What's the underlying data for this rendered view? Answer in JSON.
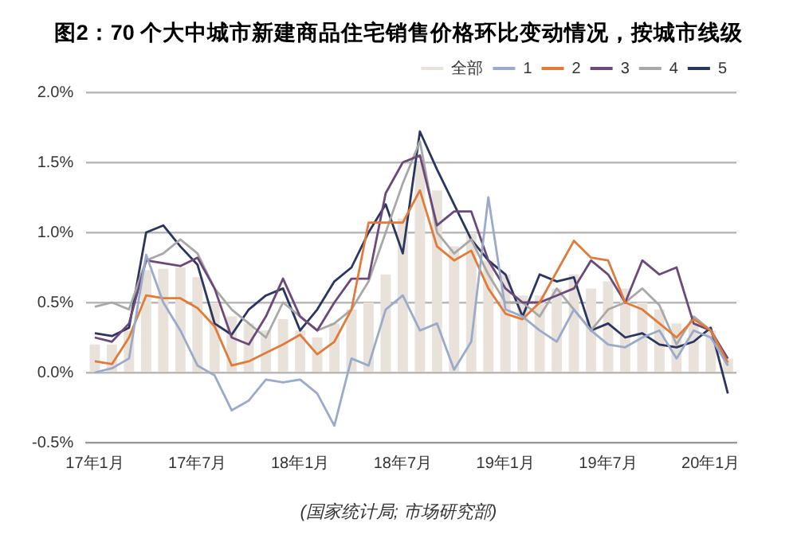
{
  "chart_data": {
    "type": "bar",
    "title": "图2：70 个大中城市新建商品住宅销售价格环比变动情况，按城市线级",
    "categories": [
      "17年1月",
      null,
      null,
      null,
      null,
      null,
      "17年7月",
      null,
      null,
      null,
      null,
      null,
      "18年1月",
      null,
      null,
      null,
      null,
      null,
      "18年7月",
      null,
      null,
      null,
      null,
      null,
      "19年1月",
      null,
      null,
      null,
      null,
      null,
      "19年7月",
      null,
      null,
      null,
      null,
      null,
      "20年1月",
      null
    ],
    "series": [
      {
        "name": "全部",
        "color": "#e8e2da",
        "values": [
          0.2,
          0.2,
          0.3,
          0.73,
          0.74,
          0.75,
          0.68,
          0.5,
          0.4,
          0.35,
          0.3,
          0.38,
          0.3,
          0.25,
          0.35,
          0.45,
          0.5,
          0.7,
          1.1,
          1.5,
          1.3,
          0.9,
          1.0,
          0.8,
          0.7,
          0.55,
          0.55,
          0.6,
          0.7,
          0.6,
          0.65,
          0.6,
          0.5,
          0.45,
          0.35,
          0.35,
          0.3,
          0.1
        ]
      },
      {
        "name": "1",
        "type": "line",
        "color": "#9aaac8",
        "values": [
          0.0,
          0.03,
          0.1,
          0.84,
          0.5,
          0.3,
          0.05,
          -0.02,
          -0.27,
          -0.2,
          -0.05,
          -0.07,
          -0.05,
          -0.15,
          -0.38,
          0.1,
          0.05,
          0.45,
          0.55,
          0.3,
          0.35,
          0.02,
          0.22,
          1.25,
          0.45,
          0.4,
          0.3,
          0.22,
          0.45,
          0.3,
          0.2,
          0.18,
          0.25,
          0.3,
          0.1,
          0.3,
          0.25,
          0.05
        ]
      },
      {
        "name": "2",
        "type": "line",
        "color": "#e07b39",
        "values": [
          0.08,
          0.06,
          0.25,
          0.55,
          0.53,
          0.53,
          0.46,
          0.33,
          0.05,
          0.08,
          0.14,
          0.2,
          0.27,
          0.13,
          0.22,
          0.45,
          1.07,
          1.07,
          1.07,
          1.3,
          0.9,
          0.8,
          0.87,
          0.6,
          0.42,
          0.38,
          0.5,
          0.72,
          0.94,
          0.82,
          0.8,
          0.5,
          0.45,
          0.35,
          0.25,
          0.38,
          0.3,
          0.07
        ]
      },
      {
        "name": "3",
        "type": "line",
        "color": "#6b4a7a",
        "values": [
          0.25,
          0.22,
          0.35,
          0.8,
          0.78,
          0.76,
          0.82,
          0.6,
          0.25,
          0.2,
          0.4,
          0.67,
          0.4,
          0.3,
          0.5,
          0.67,
          0.67,
          1.28,
          1.5,
          1.55,
          1.05,
          1.15,
          1.15,
          0.8,
          0.6,
          0.5,
          0.5,
          0.55,
          0.6,
          0.8,
          0.7,
          0.5,
          0.8,
          0.7,
          0.75,
          0.35,
          0.3,
          0.1
        ]
      },
      {
        "name": "4",
        "type": "line",
        "color": "#a8a8a8",
        "values": [
          0.47,
          0.5,
          0.45,
          0.8,
          0.85,
          0.95,
          0.85,
          0.6,
          0.45,
          0.35,
          0.25,
          0.5,
          0.4,
          0.3,
          0.35,
          0.45,
          0.65,
          1.0,
          1.35,
          1.65,
          1.0,
          0.85,
          0.95,
          0.7,
          0.5,
          0.5,
          0.4,
          0.6,
          0.45,
          0.3,
          0.45,
          0.5,
          0.6,
          0.48,
          0.2,
          0.4,
          0.3,
          0.05
        ]
      },
      {
        "name": "5",
        "type": "line",
        "color": "#2a3560",
        "values": [
          0.28,
          0.26,
          0.32,
          1.0,
          1.05,
          0.9,
          0.77,
          0.35,
          0.27,
          0.45,
          0.55,
          0.6,
          0.3,
          0.45,
          0.65,
          0.75,
          1.0,
          1.2,
          0.85,
          1.72,
          1.45,
          1.2,
          0.95,
          0.8,
          0.7,
          0.4,
          0.7,
          0.65,
          0.68,
          0.3,
          0.35,
          0.25,
          0.28,
          0.2,
          0.18,
          0.22,
          0.32,
          -0.15
        ]
      }
    ],
    "ylim": [
      -0.5,
      2.0
    ],
    "yticks": [
      {
        "value": -0.5,
        "label": "-0.5%"
      },
      {
        "value": 0,
        "label": "0.0%"
      },
      {
        "value": 0.5,
        "label": "0.5%"
      },
      {
        "value": 1.0,
        "label": "1.0%"
      },
      {
        "value": 1.5,
        "label": "1.5%"
      },
      {
        "value": 2.0,
        "label": "2.0%"
      }
    ],
    "grid": "y",
    "legend": "top right",
    "marker": "none",
    "line_style": "solid",
    "annotations": [
      "(国家统计局; 市场研究部)"
    ]
  }
}
